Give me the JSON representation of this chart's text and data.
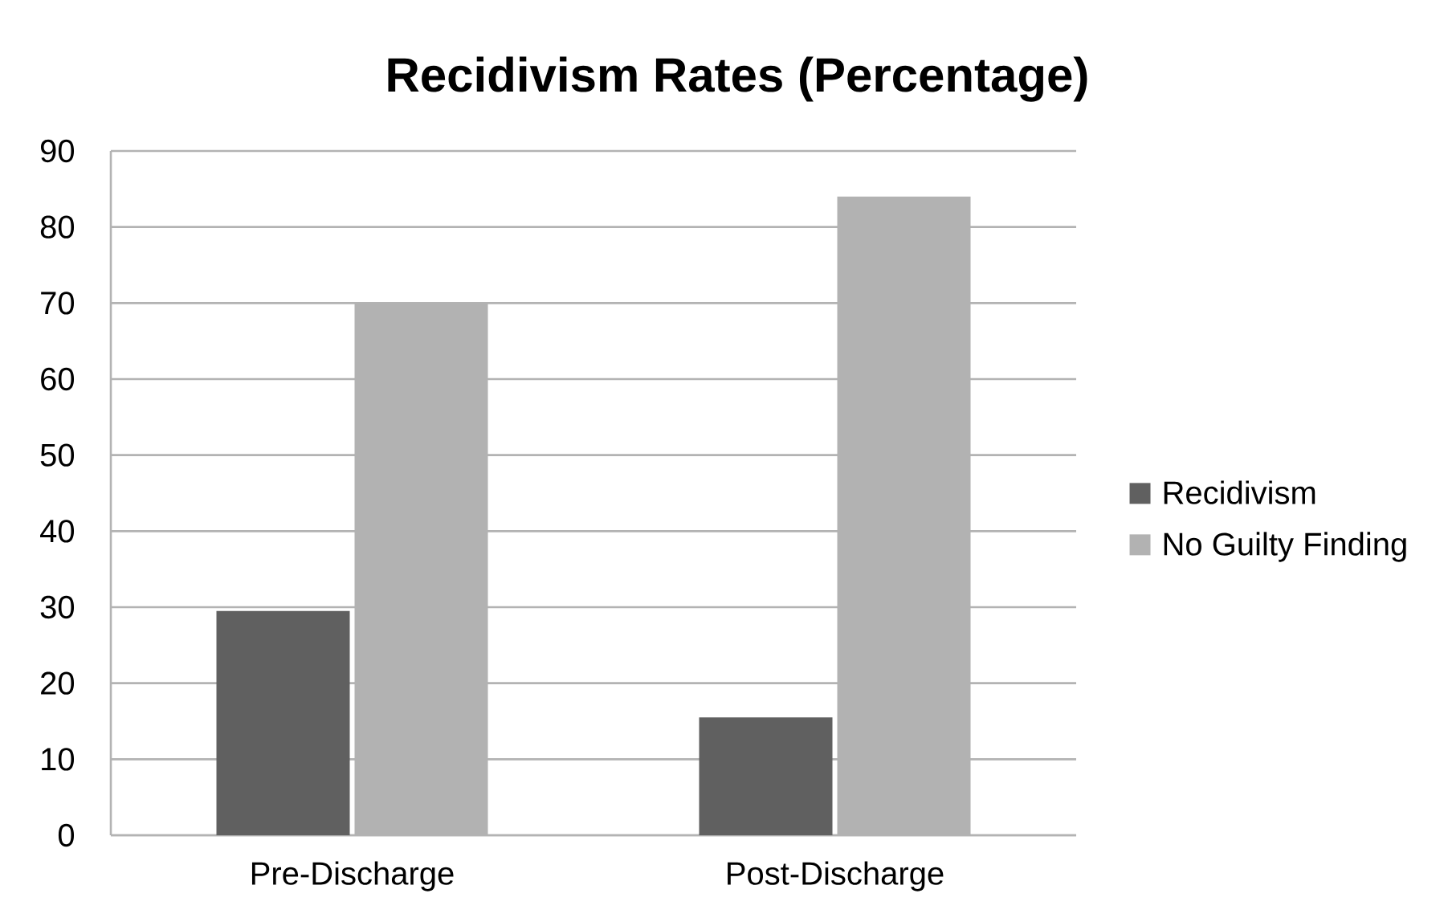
{
  "chart_data": {
    "type": "bar",
    "title": "Recidivism Rates (Percentage)",
    "categories": [
      "Pre-Discharge",
      "Post-Discharge"
    ],
    "series": [
      {
        "name": "Recidivism",
        "color": "#606060",
        "values": [
          29.5,
          15.5
        ]
      },
      {
        "name": "No Guilty Finding",
        "color": "#b2b2b2",
        "values": [
          70,
          84
        ]
      }
    ],
    "ylim": [
      0,
      90
    ],
    "yticks": [
      0,
      10,
      20,
      30,
      40,
      50,
      60,
      70,
      80,
      90
    ],
    "grid": "y",
    "legend": "right"
  }
}
